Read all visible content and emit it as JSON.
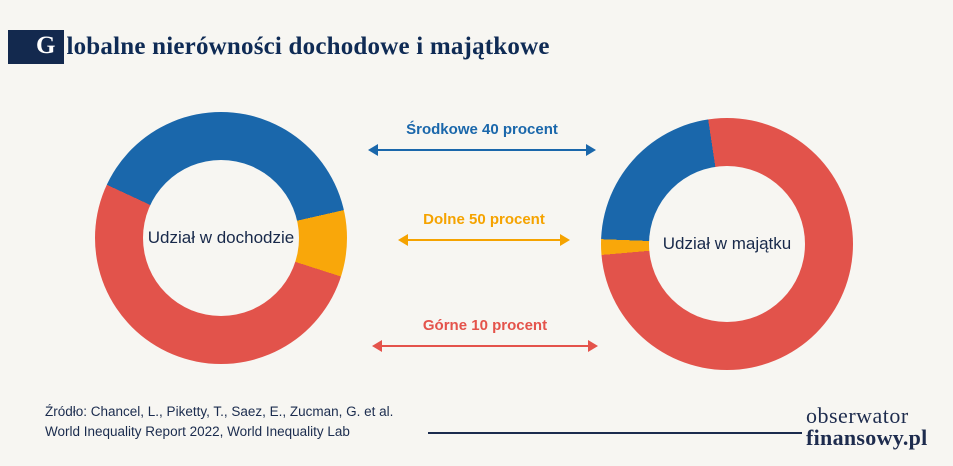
{
  "page": {
    "background": "#f7f6f2"
  },
  "header": {
    "drop_cap": "G",
    "title_rest": "lobalne nierówności dochodowe i majątkowe"
  },
  "legend": [
    {
      "id": "middle40",
      "label": "Środkowe 40 procent",
      "color": "#1a67ab"
    },
    {
      "id": "bottom50",
      "label": "Dolne 50 procent",
      "color": "#f5a300"
    },
    {
      "id": "top10",
      "label": "Górne 10 procent",
      "color": "#e4534b"
    }
  ],
  "chart_data": [
    {
      "type": "pie",
      "variant": "donut",
      "title": "Udział w dochodzie",
      "start_angle": 295,
      "legend_position": "center-between-charts",
      "segments": [
        {
          "label": "Środkowe 40 procent",
          "value": 39.5,
          "color": "#1a67ab"
        },
        {
          "label": "Dolne 50 procent",
          "value": 8.5,
          "color": "#f9a70a"
        },
        {
          "label": "Górne 10 procent",
          "value": 52,
          "color": "#e2534b"
        }
      ]
    },
    {
      "type": "pie",
      "variant": "donut",
      "title": "Udział w majątku",
      "start_angle": 265,
      "legend_position": "center-between-charts",
      "segments": [
        {
          "label": "Dolne 50 procent",
          "value": 2,
          "color": "#f9a70a"
        },
        {
          "label": "Środkowe 40 procent",
          "value": 22,
          "color": "#1a67ab"
        },
        {
          "label": "Górne 10 procent",
          "value": 76,
          "color": "#e2534b"
        }
      ]
    }
  ],
  "footer": {
    "source_line1": "Źródło: Chancel, L., Piketty, T., Saez, E., Zucman, G. et al.",
    "source_line2": "World Inequality Report 2022, World Inequality Lab",
    "logo_line1": "obserwator",
    "logo_line2": "finansowy.pl"
  }
}
